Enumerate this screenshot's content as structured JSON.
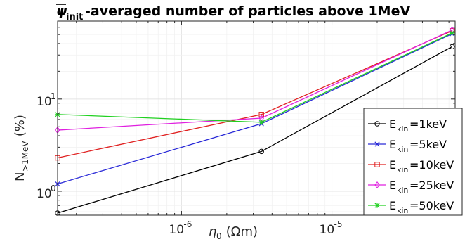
{
  "chart_data": {
    "type": "line",
    "title": {
      "symbol": "ψ",
      "subscript": "init",
      "text": "-averaged number of particles above 1MeV"
    },
    "xlabel": {
      "symbol": "η",
      "subscript": "0",
      "unit": " (Ωm)"
    },
    "ylabel": {
      "symbol": "N",
      "subscript": ">1MeV",
      "unit": " (%)"
    },
    "x_scale": "log",
    "y_scale": "log",
    "xlim": [
      1.5e-07,
      6.6e-05
    ],
    "ylim": [
      0.55,
      70
    ],
    "x_ticks": [
      {
        "value": 1e-06,
        "base": "10",
        "exp": "-6"
      },
      {
        "value": 1e-05,
        "base": "10",
        "exp": "-5"
      }
    ],
    "y_ticks": [
      {
        "value": 1,
        "base": "10",
        "exp": "0"
      },
      {
        "value": 10,
        "base": "10",
        "exp": "1"
      }
    ],
    "grid": true,
    "legend": {
      "position": "bottom-right",
      "prefix": "E",
      "subscript": "kin"
    },
    "x": [
      1.5e-07,
      3.4e-06,
      6.3e-05
    ],
    "series": [
      {
        "name": "=1keV",
        "color": "#000000",
        "marker": "circle",
        "values": [
          0.58,
          2.7,
          37
        ]
      },
      {
        "name": "=5keV",
        "color": "#2b2bd8",
        "marker": "x",
        "values": [
          1.2,
          5.4,
          51
        ]
      },
      {
        "name": "=10keV",
        "color": "#e02020",
        "marker": "square",
        "values": [
          2.3,
          6.8,
          55
        ]
      },
      {
        "name": "=25keV",
        "color": "#e020e0",
        "marker": "diamond",
        "values": [
          4.6,
          6.2,
          56
        ]
      },
      {
        "name": "=50keV",
        "color": "#20d020",
        "marker": "star",
        "values": [
          6.8,
          5.6,
          52
        ]
      }
    ]
  }
}
